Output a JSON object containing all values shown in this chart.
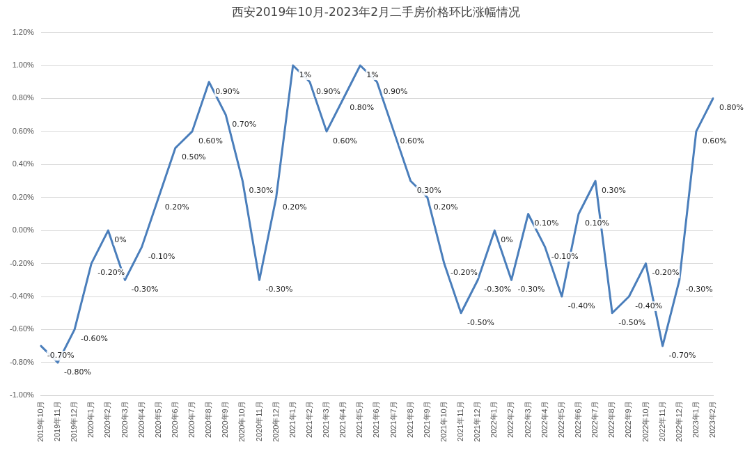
{
  "chart_data": {
    "type": "line",
    "title": "西安2019年10月-2023年2月二手房价格环比涨幅情况",
    "categories": [
      "2019年10月",
      "2019年11月",
      "2019年12月",
      "2020年1月",
      "2020年2月",
      "2020年3月",
      "2020年4月",
      "2020年5月",
      "2020年6月",
      "2020年7月",
      "2020年8月",
      "2020年9月",
      "2020年10月",
      "2020年11月",
      "2020年12月",
      "2021年1月",
      "2021年2月",
      "2021年3月",
      "2021年4月",
      "2021年5月",
      "2021年6月",
      "2021年7月",
      "2021年8月",
      "2021年9月",
      "2021年10月",
      "2021年11月",
      "2021年12月",
      "2022年1月",
      "2022年2月",
      "2022年3月",
      "2022年4月",
      "2022年5月",
      "2022年6月",
      "2022年7月",
      "2022年8月",
      "2022年9月",
      "2022年10月",
      "2022年11月",
      "2022年12月",
      "2023年1月",
      "2023年2月"
    ],
    "series": [
      {
        "color": "#4a7ebb",
        "values": [
          -0.7,
          -0.8,
          -0.6,
          -0.2,
          0,
          -0.3,
          -0.1,
          0.2,
          0.5,
          0.6,
          0.9,
          0.7,
          0.3,
          -0.3,
          0.2,
          1,
          0.9,
          0.6,
          0.8,
          1,
          0.9,
          0.6,
          0.3,
          0.2,
          -0.2,
          -0.5,
          -0.3,
          0,
          -0.3,
          0.1,
          -0.1,
          -0.4,
          0.1,
          0.3,
          -0.5,
          -0.4,
          -0.2,
          -0.7,
          -0.3,
          0.6,
          0.8
        ],
        "value_labels": [
          "-0.70%",
          "-0.80%",
          "-0.60%",
          "-0.20%",
          "0%",
          "-0.30%",
          "-0.10%",
          "0.20%",
          "0.50%",
          "0.60%",
          "0.90%",
          "0.70%",
          "0.30%",
          "-0.30%",
          "0.20%",
          "1%",
          "0.90%",
          "0.60%",
          "0.80%",
          "1%",
          "0.90%",
          "0.60%",
          "0.30%",
          "0.20%",
          "-0.20%",
          "-0.50%",
          "-0.30%",
          "0%",
          "-0.30%",
          "0.10%",
          "-0.10%",
          "-0.40%",
          "0.10%",
          "0.30%",
          "-0.50%",
          "-0.40%",
          "-0.20%",
          "-0.70%",
          "-0.30%",
          "0.60%",
          "0.80%"
        ]
      }
    ],
    "ylim": [
      -1,
      1.2
    ],
    "yticks": [
      {
        "value": -1,
        "label": "-1.00%"
      },
      {
        "value": -0.8,
        "label": "-0.80%"
      },
      {
        "value": -0.6,
        "label": "-0.60%"
      },
      {
        "value": -0.4,
        "label": "-0.40%"
      },
      {
        "value": -0.2,
        "label": "-0.20%"
      },
      {
        "value": 0,
        "label": "0.00%"
      },
      {
        "value": 0.2,
        "label": "0.20%"
      },
      {
        "value": 0.4,
        "label": "0.40%"
      },
      {
        "value": 0.6,
        "label": "0.60%"
      },
      {
        "value": 0.8,
        "label": "0.80%"
      },
      {
        "value": 1,
        "label": "1.00%"
      },
      {
        "value": 1.2,
        "label": "1.20%"
      }
    ],
    "grid": "y",
    "legend": false,
    "marker": "none",
    "line_style": "solid"
  }
}
